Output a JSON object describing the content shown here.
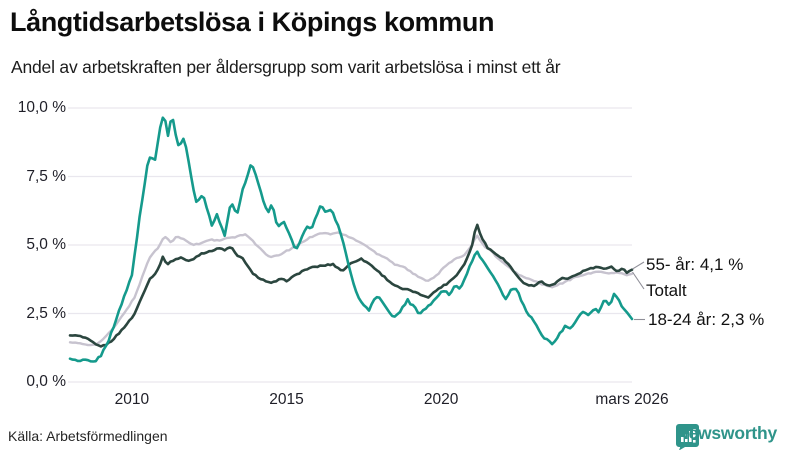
{
  "header": {
    "title": "Långtidsarbetslösa i Köpings kommun",
    "subtitle": "Andel av arbetskraften per åldersgrupp som varit arbetslösa i minst ett år"
  },
  "footer": {
    "source": "Källa: Arbetsförmedlingen",
    "brand": "Newsworthy",
    "brand_icon": "newsworthy-chart-bubble-icon",
    "brand_color": "#2f948a"
  },
  "chart_data": {
    "type": "line",
    "title": "Långtidsarbetslösa i Köpings kommun",
    "subtitle": "Andel av arbetskraften per åldersgrupp som varit arbetslösa i minst ett år",
    "unit": "%",
    "x_range": [
      2008,
      2026.17
    ],
    "y_range": [
      0,
      10
    ],
    "grid": true,
    "grid_color": "#e9e7ee",
    "x_ticks": [
      {
        "value": 2010,
        "label": "2010"
      },
      {
        "value": 2015,
        "label": "2015"
      },
      {
        "value": 2020,
        "label": "2020"
      },
      {
        "value": 2026.17,
        "label": "mars 2026"
      }
    ],
    "y_ticks": [
      {
        "value": 0,
        "label": "0,0 %"
      },
      {
        "value": 2.5,
        "label": "2,5 %"
      },
      {
        "value": 5,
        "label": "5,0 %"
      },
      {
        "value": 7.5,
        "label": "7,5 %"
      },
      {
        "value": 10,
        "label": "10,0 %"
      }
    ],
    "series": [
      {
        "name": "Totalt",
        "color": "#c7c3cf",
        "end_label": "Totalt",
        "end_value": 3.95,
        "points": [
          [
            2008.0,
            1.45
          ],
          [
            2008.3,
            1.4
          ],
          [
            2008.6,
            1.35
          ],
          [
            2008.9,
            1.4
          ],
          [
            2009.2,
            1.7
          ],
          [
            2009.5,
            2.1
          ],
          [
            2009.8,
            2.6
          ],
          [
            2010.1,
            3.1
          ],
          [
            2010.35,
            3.9
          ],
          [
            2010.6,
            4.6
          ],
          [
            2010.85,
            4.9
          ],
          [
            2011.05,
            5.35
          ],
          [
            2011.25,
            5.1
          ],
          [
            2011.45,
            5.3
          ],
          [
            2011.7,
            5.2
          ],
          [
            2011.95,
            5.0
          ],
          [
            2012.2,
            5.05
          ],
          [
            2012.5,
            5.2
          ],
          [
            2012.8,
            5.15
          ],
          [
            2013.1,
            5.25
          ],
          [
            2013.4,
            5.3
          ],
          [
            2013.7,
            5.4
          ],
          [
            2013.95,
            5.1
          ],
          [
            2014.2,
            4.8
          ],
          [
            2014.45,
            4.55
          ],
          [
            2014.7,
            4.6
          ],
          [
            2014.95,
            4.75
          ],
          [
            2015.2,
            4.9
          ],
          [
            2015.5,
            5.1
          ],
          [
            2015.8,
            5.3
          ],
          [
            2016.1,
            5.45
          ],
          [
            2016.4,
            5.4
          ],
          [
            2016.7,
            5.45
          ],
          [
            2017.0,
            5.3
          ],
          [
            2017.3,
            5.15
          ],
          [
            2017.6,
            4.95
          ],
          [
            2017.9,
            4.7
          ],
          [
            2018.2,
            4.55
          ],
          [
            2018.5,
            4.3
          ],
          [
            2018.8,
            4.2
          ],
          [
            2019.1,
            3.95
          ],
          [
            2019.4,
            3.75
          ],
          [
            2019.6,
            3.7
          ],
          [
            2019.9,
            3.95
          ],
          [
            2020.2,
            4.3
          ],
          [
            2020.5,
            4.5
          ],
          [
            2020.75,
            4.65
          ],
          [
            2021.0,
            5.0
          ],
          [
            2021.15,
            5.4
          ],
          [
            2021.35,
            5.0
          ],
          [
            2021.6,
            4.8
          ],
          [
            2021.85,
            4.5
          ],
          [
            2022.1,
            4.25
          ],
          [
            2022.4,
            4.0
          ],
          [
            2022.7,
            3.8
          ],
          [
            2023.0,
            3.7
          ],
          [
            2023.3,
            3.55
          ],
          [
            2023.6,
            3.45
          ],
          [
            2023.9,
            3.6
          ],
          [
            2024.2,
            3.75
          ],
          [
            2024.5,
            3.9
          ],
          [
            2024.8,
            3.95
          ],
          [
            2025.1,
            4.05
          ],
          [
            2025.4,
            3.95
          ],
          [
            2025.7,
            4.0
          ],
          [
            2026.0,
            3.9
          ],
          [
            2026.17,
            3.95
          ]
        ]
      },
      {
        "name": "55- år",
        "color": "#2b463f",
        "end_label": "55- år: 4,1 %",
        "end_value": 4.1,
        "points": [
          [
            2008.0,
            1.7
          ],
          [
            2008.3,
            1.68
          ],
          [
            2008.6,
            1.55
          ],
          [
            2008.85,
            1.35
          ],
          [
            2009.05,
            1.3
          ],
          [
            2009.3,
            1.45
          ],
          [
            2009.6,
            1.8
          ],
          [
            2009.9,
            2.2
          ],
          [
            2010.1,
            2.5
          ],
          [
            2010.35,
            3.2
          ],
          [
            2010.6,
            3.8
          ],
          [
            2010.8,
            4.0
          ],
          [
            2011.0,
            4.55
          ],
          [
            2011.15,
            4.3
          ],
          [
            2011.35,
            4.45
          ],
          [
            2011.6,
            4.55
          ],
          [
            2011.8,
            4.4
          ],
          [
            2012.0,
            4.5
          ],
          [
            2012.25,
            4.7
          ],
          [
            2012.5,
            4.75
          ],
          [
            2012.8,
            4.9
          ],
          [
            2013.0,
            4.8
          ],
          [
            2013.2,
            4.95
          ],
          [
            2013.4,
            4.6
          ],
          [
            2013.6,
            4.5
          ],
          [
            2013.9,
            3.95
          ],
          [
            2014.2,
            3.75
          ],
          [
            2014.5,
            3.6
          ],
          [
            2014.8,
            3.75
          ],
          [
            2015.0,
            3.7
          ],
          [
            2015.3,
            3.9
          ],
          [
            2015.6,
            4.1
          ],
          [
            2015.9,
            4.2
          ],
          [
            2016.2,
            4.25
          ],
          [
            2016.5,
            4.3
          ],
          [
            2016.8,
            4.05
          ],
          [
            2017.1,
            4.35
          ],
          [
            2017.4,
            4.5
          ],
          [
            2017.7,
            4.3
          ],
          [
            2017.9,
            4.1
          ],
          [
            2018.1,
            3.9
          ],
          [
            2018.4,
            3.6
          ],
          [
            2018.7,
            3.4
          ],
          [
            2019.0,
            3.35
          ],
          [
            2019.3,
            3.2
          ],
          [
            2019.6,
            3.1
          ],
          [
            2019.9,
            3.4
          ],
          [
            2020.2,
            3.6
          ],
          [
            2020.5,
            3.9
          ],
          [
            2020.8,
            4.4
          ],
          [
            2021.0,
            5.0
          ],
          [
            2021.15,
            5.8
          ],
          [
            2021.3,
            5.3
          ],
          [
            2021.5,
            4.9
          ],
          [
            2021.75,
            4.7
          ],
          [
            2022.0,
            4.5
          ],
          [
            2022.25,
            4.2
          ],
          [
            2022.5,
            3.8
          ],
          [
            2022.75,
            3.55
          ],
          [
            2023.0,
            3.5
          ],
          [
            2023.2,
            3.7
          ],
          [
            2023.45,
            3.5
          ],
          [
            2023.7,
            3.6
          ],
          [
            2023.9,
            3.8
          ],
          [
            2024.1,
            3.75
          ],
          [
            2024.35,
            3.9
          ],
          [
            2024.6,
            4.05
          ],
          [
            2024.85,
            4.15
          ],
          [
            2025.1,
            4.2
          ],
          [
            2025.3,
            4.1
          ],
          [
            2025.5,
            4.2
          ],
          [
            2025.7,
            4.05
          ],
          [
            2025.9,
            4.15
          ],
          [
            2026.0,
            4.0
          ],
          [
            2026.17,
            4.1
          ]
        ]
      },
      {
        "name": "18-24 år",
        "color": "#159a8c",
        "end_label": "18-24 år: 2,3 %",
        "end_value": 2.3,
        "points": [
          [
            2008.0,
            0.85
          ],
          [
            2008.25,
            0.75
          ],
          [
            2008.5,
            0.8
          ],
          [
            2008.75,
            0.72
          ],
          [
            2009.0,
            0.95
          ],
          [
            2009.25,
            1.55
          ],
          [
            2009.5,
            2.3
          ],
          [
            2009.75,
            3.1
          ],
          [
            2010.0,
            3.9
          ],
          [
            2010.25,
            6.0
          ],
          [
            2010.5,
            7.9
          ],
          [
            2010.6,
            8.2
          ],
          [
            2010.75,
            8.1
          ],
          [
            2010.9,
            9.2
          ],
          [
            2011.05,
            9.9
          ],
          [
            2011.15,
            8.9
          ],
          [
            2011.3,
            9.8
          ],
          [
            2011.45,
            8.8
          ],
          [
            2011.55,
            8.5
          ],
          [
            2011.65,
            9.0
          ],
          [
            2011.8,
            8.3
          ],
          [
            2011.95,
            7.3
          ],
          [
            2012.1,
            6.5
          ],
          [
            2012.3,
            6.9
          ],
          [
            2012.45,
            6.2
          ],
          [
            2012.6,
            5.7
          ],
          [
            2012.75,
            6.1
          ],
          [
            2012.9,
            5.7
          ],
          [
            2013.0,
            5.3
          ],
          [
            2013.2,
            6.6
          ],
          [
            2013.4,
            6.1
          ],
          [
            2013.55,
            6.9
          ],
          [
            2013.7,
            7.4
          ],
          [
            2013.85,
            8.0
          ],
          [
            2014.0,
            7.6
          ],
          [
            2014.2,
            6.8
          ],
          [
            2014.4,
            6.2
          ],
          [
            2014.55,
            6.5
          ],
          [
            2014.7,
            5.6
          ],
          [
            2014.9,
            5.9
          ],
          [
            2015.1,
            5.4
          ],
          [
            2015.3,
            4.75
          ],
          [
            2015.5,
            5.3
          ],
          [
            2015.65,
            5.7
          ],
          [
            2015.8,
            5.6
          ],
          [
            2015.95,
            6.0
          ],
          [
            2016.1,
            6.5
          ],
          [
            2016.3,
            6.15
          ],
          [
            2016.45,
            6.35
          ],
          [
            2016.6,
            5.9
          ],
          [
            2016.75,
            5.4
          ],
          [
            2016.9,
            4.8
          ],
          [
            2017.05,
            4.1
          ],
          [
            2017.2,
            3.5
          ],
          [
            2017.35,
            3.0
          ],
          [
            2017.5,
            2.8
          ],
          [
            2017.65,
            2.6
          ],
          [
            2017.8,
            2.95
          ],
          [
            2017.95,
            3.15
          ],
          [
            2018.1,
            2.9
          ],
          [
            2018.3,
            2.6
          ],
          [
            2018.5,
            2.35
          ],
          [
            2018.7,
            2.6
          ],
          [
            2018.9,
            3.0
          ],
          [
            2019.1,
            2.75
          ],
          [
            2019.3,
            2.5
          ],
          [
            2019.5,
            2.65
          ],
          [
            2019.7,
            2.9
          ],
          [
            2019.9,
            3.15
          ],
          [
            2020.1,
            3.35
          ],
          [
            2020.25,
            3.2
          ],
          [
            2020.45,
            3.5
          ],
          [
            2020.6,
            3.4
          ],
          [
            2020.8,
            3.9
          ],
          [
            2021.0,
            4.4
          ],
          [
            2021.15,
            4.75
          ],
          [
            2021.3,
            4.5
          ],
          [
            2021.5,
            4.2
          ],
          [
            2021.7,
            3.8
          ],
          [
            2021.9,
            3.4
          ],
          [
            2022.1,
            3.0
          ],
          [
            2022.25,
            3.35
          ],
          [
            2022.45,
            3.4
          ],
          [
            2022.6,
            2.9
          ],
          [
            2022.8,
            2.5
          ],
          [
            2023.0,
            2.2
          ],
          [
            2023.2,
            1.8
          ],
          [
            2023.4,
            1.55
          ],
          [
            2023.6,
            1.35
          ],
          [
            2023.8,
            1.7
          ],
          [
            2024.0,
            2.05
          ],
          [
            2024.2,
            1.9
          ],
          [
            2024.4,
            2.3
          ],
          [
            2024.55,
            2.6
          ],
          [
            2024.75,
            2.4
          ],
          [
            2024.95,
            2.7
          ],
          [
            2025.1,
            2.5
          ],
          [
            2025.3,
            3.05
          ],
          [
            2025.45,
            2.75
          ],
          [
            2025.6,
            3.3
          ],
          [
            2025.8,
            2.85
          ],
          [
            2026.0,
            2.55
          ],
          [
            2026.17,
            2.3
          ]
        ]
      }
    ]
  }
}
